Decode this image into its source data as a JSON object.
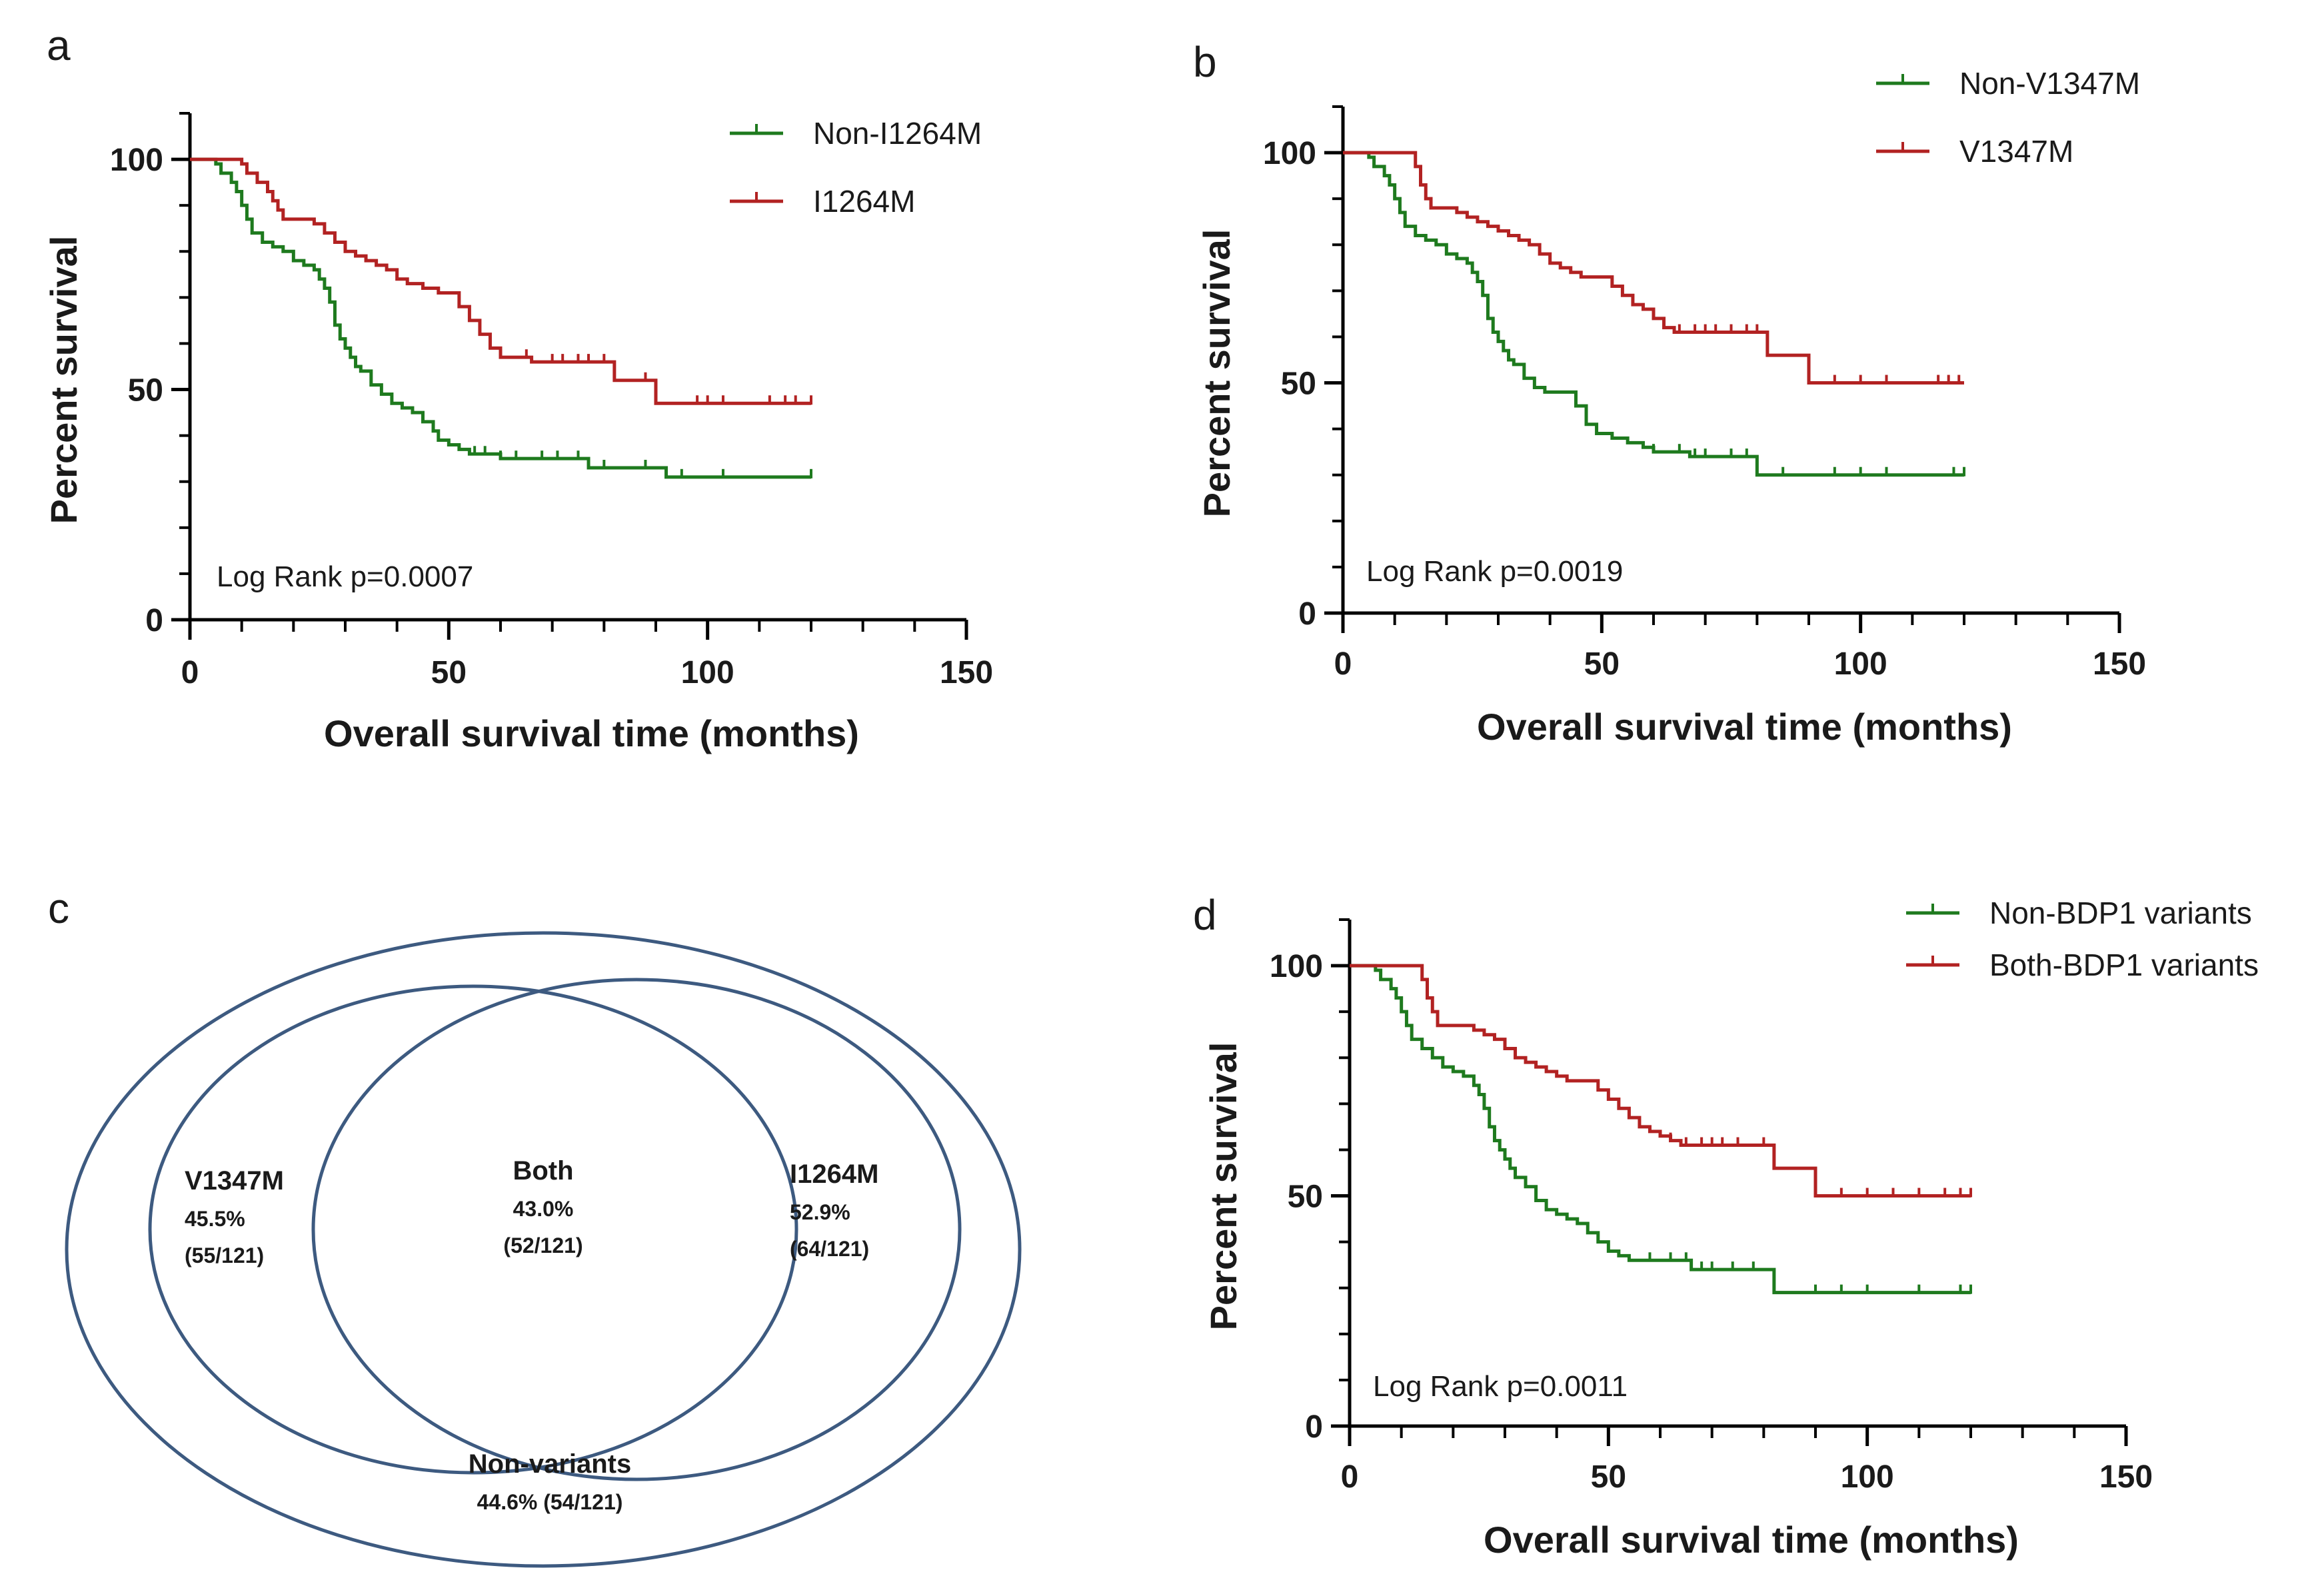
{
  "colors": {
    "green": "#1e7a1e",
    "red": "#b22222",
    "axis": "#000000",
    "venn": "#3d5a80"
  },
  "panels": {
    "a": {
      "letter": "a"
    },
    "b": {
      "letter": "b"
    },
    "c": {
      "letter": "c"
    },
    "d": {
      "letter": "d"
    }
  },
  "chart_data": [
    {
      "id": "a",
      "type": "line",
      "subtype": "kaplan-meier",
      "xlabel": "Overall survival time (months)",
      "ylabel": "Percent survival",
      "xlim": [
        0,
        150
      ],
      "ylim": [
        0,
        110
      ],
      "xticks": [
        "0",
        "50",
        "100",
        "150"
      ],
      "yticks": [
        "0",
        "50",
        "100"
      ],
      "annotation": "Log Rank p=0.0007",
      "legend_position": "top-right",
      "series": [
        {
          "name": "Non-I1264M",
          "color": "green",
          "points": [
            [
              0,
              100
            ],
            [
              4,
              100
            ],
            [
              5,
              99
            ],
            [
              6,
              97
            ],
            [
              8,
              95
            ],
            [
              9,
              93
            ],
            [
              10,
              90
            ],
            [
              11,
              87
            ],
            [
              12,
              84
            ],
            [
              14,
              82
            ],
            [
              16,
              81
            ],
            [
              18,
              80
            ],
            [
              20,
              78
            ],
            [
              22,
              77
            ],
            [
              24,
              76
            ],
            [
              25,
              74
            ],
            [
              26,
              72
            ],
            [
              27,
              69
            ],
            [
              28,
              64
            ],
            [
              29,
              61
            ],
            [
              30,
              59
            ],
            [
              31,
              57
            ],
            [
              32,
              55
            ],
            [
              33,
              54
            ],
            [
              35,
              51
            ],
            [
              37,
              49
            ],
            [
              39,
              47
            ],
            [
              41,
              46
            ],
            [
              43,
              45
            ],
            [
              45,
              43
            ],
            [
              47,
              41
            ],
            [
              48,
              39
            ],
            [
              50,
              38
            ],
            [
              52,
              37
            ],
            [
              54,
              36
            ],
            [
              55,
              36
            ],
            [
              60,
              35
            ],
            [
              75,
              35
            ],
            [
              77,
              33
            ],
            [
              90,
              33
            ],
            [
              92,
              31
            ],
            [
              120,
              31
            ]
          ],
          "censored": [
            55,
            57,
            60,
            63,
            68,
            71,
            75,
            80,
            88,
            95,
            103,
            120
          ]
        },
        {
          "name": "I1264M",
          "color": "red",
          "points": [
            [
              0,
              100
            ],
            [
              8,
              100
            ],
            [
              10,
              99
            ],
            [
              11,
              97
            ],
            [
              13,
              95
            ],
            [
              15,
              93
            ],
            [
              16,
              91
            ],
            [
              17,
              89
            ],
            [
              18,
              87
            ],
            [
              22,
              87
            ],
            [
              24,
              86
            ],
            [
              26,
              84
            ],
            [
              28,
              82
            ],
            [
              30,
              80
            ],
            [
              32,
              79
            ],
            [
              34,
              78
            ],
            [
              36,
              77
            ],
            [
              38,
              76
            ],
            [
              40,
              74
            ],
            [
              42,
              73
            ],
            [
              45,
              72
            ],
            [
              48,
              71
            ],
            [
              50,
              71
            ],
            [
              52,
              68
            ],
            [
              54,
              65
            ],
            [
              56,
              62
            ],
            [
              58,
              59
            ],
            [
              60,
              57
            ],
            [
              64,
              57
            ],
            [
              66,
              56
            ],
            [
              80,
              56
            ],
            [
              82,
              52
            ],
            [
              88,
              52
            ],
            [
              90,
              47
            ],
            [
              120,
              47
            ]
          ],
          "censored": [
            65,
            70,
            72,
            75,
            77,
            80,
            88,
            98,
            100,
            103,
            112,
            115,
            117,
            120
          ]
        }
      ]
    },
    {
      "id": "b",
      "type": "line",
      "subtype": "kaplan-meier",
      "xlabel": "Overall survival time (months)",
      "ylabel": "Percent survival",
      "xlim": [
        0,
        150
      ],
      "ylim": [
        0,
        110
      ],
      "xticks": [
        "0",
        "50",
        "100",
        "150"
      ],
      "yticks": [
        "0",
        "50",
        "100"
      ],
      "annotation": "Log Rank p=0.0019",
      "legend_position": "top-right",
      "series": [
        {
          "name": "Non-V1347M",
          "color": "green",
          "points": [
            [
              0,
              100
            ],
            [
              4,
              100
            ],
            [
              5,
              99
            ],
            [
              6,
              97
            ],
            [
              8,
              95
            ],
            [
              9,
              93
            ],
            [
              10,
              90
            ],
            [
              11,
              87
            ],
            [
              12,
              84
            ],
            [
              14,
              82
            ],
            [
              16,
              81
            ],
            [
              18,
              80
            ],
            [
              20,
              78
            ],
            [
              22,
              77
            ],
            [
              24,
              76
            ],
            [
              25,
              74
            ],
            [
              26,
              72
            ],
            [
              27,
              69
            ],
            [
              28,
              64
            ],
            [
              29,
              61
            ],
            [
              30,
              59
            ],
            [
              31,
              57
            ],
            [
              32,
              55
            ],
            [
              33,
              54
            ],
            [
              35,
              51
            ],
            [
              37,
              49
            ],
            [
              39,
              48
            ],
            [
              43,
              48
            ],
            [
              45,
              45
            ],
            [
              47,
              41
            ],
            [
              49,
              39
            ],
            [
              52,
              38
            ],
            [
              55,
              37
            ],
            [
              58,
              36
            ],
            [
              60,
              35
            ],
            [
              65,
              35
            ],
            [
              67,
              34
            ],
            [
              78,
              34
            ],
            [
              80,
              30
            ],
            [
              120,
              30
            ]
          ],
          "censored": [
            60,
            65,
            68,
            70,
            75,
            78,
            85,
            95,
            100,
            105,
            118,
            120
          ]
        },
        {
          "name": "V1347M",
          "color": "red",
          "points": [
            [
              0,
              100
            ],
            [
              13,
              100
            ],
            [
              14,
              97
            ],
            [
              15,
              93
            ],
            [
              16,
              90
            ],
            [
              17,
              88
            ],
            [
              20,
              88
            ],
            [
              22,
              87
            ],
            [
              24,
              86
            ],
            [
              26,
              85
            ],
            [
              28,
              84
            ],
            [
              30,
              83
            ],
            [
              32,
              82
            ],
            [
              34,
              81
            ],
            [
              36,
              80
            ],
            [
              38,
              78
            ],
            [
              40,
              76
            ],
            [
              42,
              75
            ],
            [
              44,
              74
            ],
            [
              46,
              73
            ],
            [
              50,
              73
            ],
            [
              52,
              71
            ],
            [
              54,
              69
            ],
            [
              56,
              67
            ],
            [
              58,
              66
            ],
            [
              60,
              64
            ],
            [
              62,
              62
            ],
            [
              64,
              61
            ],
            [
              70,
              61
            ],
            [
              80,
              61
            ],
            [
              82,
              56
            ],
            [
              88,
              56
            ],
            [
              90,
              50
            ],
            [
              120,
              50
            ]
          ],
          "censored": [
            65,
            68,
            70,
            72,
            75,
            78,
            80,
            95,
            100,
            105,
            115,
            117,
            119
          ]
        }
      ]
    },
    {
      "id": "c",
      "type": "venn",
      "sets": [
        {
          "name": "V1347M",
          "percent": "45.5%",
          "count": "(55/121)"
        },
        {
          "name": "Both",
          "percent": "43.0%",
          "count": "(52/121)"
        },
        {
          "name": "I1264M",
          "percent": "52.9%",
          "count": "(64/121)"
        },
        {
          "name": "Non-variants",
          "percent_count": "44.6% (54/121)"
        }
      ]
    },
    {
      "id": "d",
      "type": "line",
      "subtype": "kaplan-meier",
      "xlabel": "Overall survival time (months)",
      "ylabel": "Percent survival",
      "xlim": [
        0,
        150
      ],
      "ylim": [
        0,
        110
      ],
      "xticks": [
        "0",
        "50",
        "100",
        "150"
      ],
      "yticks": [
        "0",
        "50",
        "100"
      ],
      "annotation": "Log Rank p=0.0011",
      "legend_position": "top-right",
      "series": [
        {
          "name": "Non-BDP1 variants",
          "color": "green",
          "points": [
            [
              0,
              100
            ],
            [
              4,
              100
            ],
            [
              5,
              99
            ],
            [
              6,
              97
            ],
            [
              8,
              95
            ],
            [
              9,
              93
            ],
            [
              10,
              90
            ],
            [
              11,
              87
            ],
            [
              12,
              84
            ],
            [
              14,
              82
            ],
            [
              16,
              80
            ],
            [
              18,
              78
            ],
            [
              20,
              77
            ],
            [
              22,
              76
            ],
            [
              24,
              74
            ],
            [
              25,
              72
            ],
            [
              26,
              69
            ],
            [
              27,
              65
            ],
            [
              28,
              62
            ],
            [
              29,
              60
            ],
            [
              30,
              58
            ],
            [
              31,
              56
            ],
            [
              32,
              54
            ],
            [
              34,
              52
            ],
            [
              36,
              49
            ],
            [
              38,
              47
            ],
            [
              40,
              46
            ],
            [
              42,
              45
            ],
            [
              44,
              44
            ],
            [
              46,
              42
            ],
            [
              48,
              40
            ],
            [
              50,
              38
            ],
            [
              52,
              37
            ],
            [
              54,
              36
            ],
            [
              64,
              36
            ],
            [
              66,
              34
            ],
            [
              80,
              34
            ],
            [
              82,
              29
            ],
            [
              120,
              29
            ]
          ],
          "censored": [
            58,
            62,
            65,
            68,
            70,
            74,
            78,
            90,
            95,
            100,
            110,
            118,
            120
          ]
        },
        {
          "name": "Both-BDP1 variants",
          "color": "red",
          "points": [
            [
              0,
              100
            ],
            [
              13,
              100
            ],
            [
              14,
              97
            ],
            [
              15,
              93
            ],
            [
              16,
              90
            ],
            [
              17,
              87
            ],
            [
              22,
              87
            ],
            [
              24,
              86
            ],
            [
              26,
              85
            ],
            [
              28,
              84
            ],
            [
              30,
              82
            ],
            [
              32,
              80
            ],
            [
              34,
              79
            ],
            [
              36,
              78
            ],
            [
              38,
              77
            ],
            [
              40,
              76
            ],
            [
              42,
              75
            ],
            [
              46,
              75
            ],
            [
              48,
              73
            ],
            [
              50,
              71
            ],
            [
              52,
              69
            ],
            [
              54,
              67
            ],
            [
              56,
              65
            ],
            [
              58,
              64
            ],
            [
              60,
              63
            ],
            [
              62,
              62
            ],
            [
              64,
              61
            ],
            [
              70,
              61
            ],
            [
              80,
              61
            ],
            [
              82,
              56
            ],
            [
              88,
              56
            ],
            [
              90,
              50
            ],
            [
              120,
              50
            ]
          ],
          "censored": [
            62,
            65,
            68,
            70,
            72,
            75,
            80,
            95,
            100,
            105,
            110,
            115,
            118,
            120
          ]
        }
      ]
    }
  ]
}
